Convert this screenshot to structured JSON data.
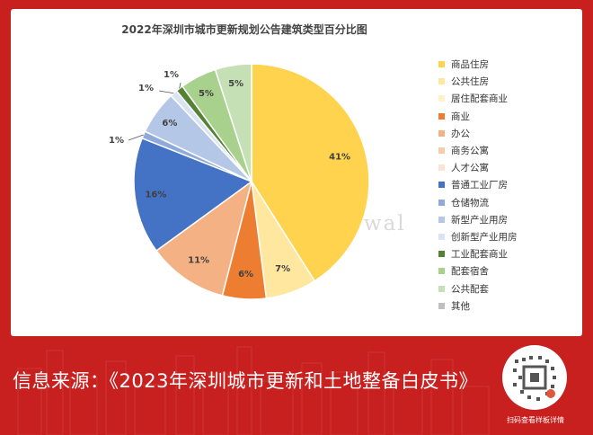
{
  "chart_data": {
    "type": "pie",
    "title": "2022年深圳市城市更新规划公告建筑类型百分比图",
    "legend_position": "right",
    "slices": [
      {
        "name": "商品住房",
        "value": 41,
        "label": "41%",
        "color": "#ffd34d"
      },
      {
        "name": "公共住房",
        "value": 7,
        "label": "7%",
        "color": "#ffe7a0"
      },
      {
        "name": "居住配套商业",
        "value": 0,
        "label": "",
        "color": "#fff1c8"
      },
      {
        "name": "商业",
        "value": 6,
        "label": "6%",
        "color": "#ed7d31"
      },
      {
        "name": "办公",
        "value": 11,
        "label": "11%",
        "color": "#f4b183"
      },
      {
        "name": "商务公寓",
        "value": 0,
        "label": "",
        "color": "#f8cbad"
      },
      {
        "name": "人才公寓",
        "value": 0,
        "label": "",
        "color": "#fbe4d5"
      },
      {
        "name": "普通工业厂房",
        "value": 16,
        "label": "16%",
        "color": "#4472c4"
      },
      {
        "name": "仓储物流",
        "value": 1,
        "label": "1%",
        "color": "#8eaadb"
      },
      {
        "name": "新型产业用房",
        "value": 6,
        "label": "6%",
        "color": "#b4c7e7"
      },
      {
        "name": "创新型产业用房",
        "value": 1,
        "label": "1%",
        "color": "#dae3f3"
      },
      {
        "name": "工业配套商业",
        "value": 1,
        "label": "1%",
        "color": "#548235"
      },
      {
        "name": "配套宿舍",
        "value": 5,
        "label": "5%",
        "color": "#a9d18e"
      },
      {
        "name": "公共配套",
        "value": 5,
        "label": "5%",
        "color": "#c5e0b4"
      },
      {
        "name": "其他",
        "value": 0,
        "label": "",
        "color": "#bfbfbf"
      }
    ]
  },
  "watermark": "One Urban Renewal",
  "footer": {
    "source_text": "信息来源：《2023年深圳城市更新和土地整备白皮书》",
    "qr_caption": "扫码查看样板详情"
  }
}
